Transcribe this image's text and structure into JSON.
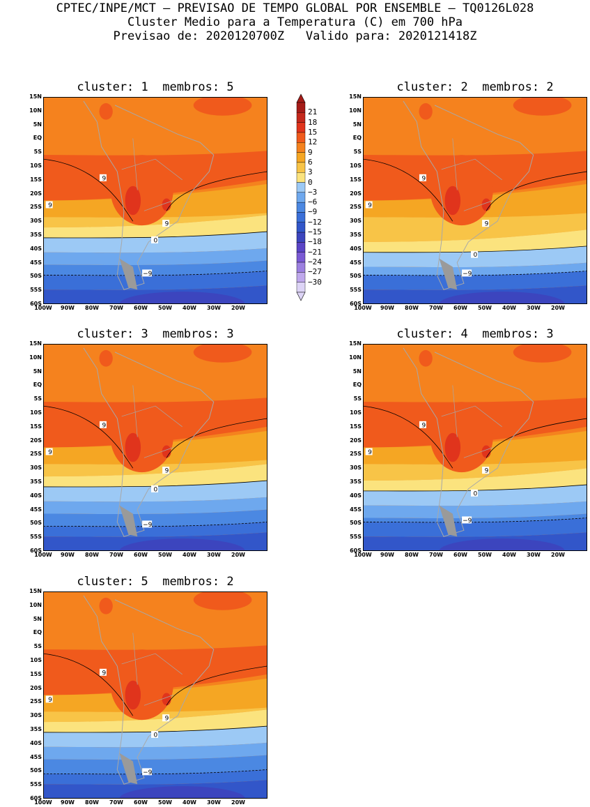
{
  "header": {
    "line1": "CPTEC/INPE/MCT – PREVISAO DE TEMPO GLOBAL POR ENSEMBLE – TQ0126L028",
    "line2": "Cluster Medio para a Temperatura (C) em 700 hPa",
    "line3": "Previsao de: 2020120700Z   Valido para: 2020121418Z"
  },
  "panels": [
    {
      "title": "cluster: 1  membros: 5"
    },
    {
      "title": "cluster: 2  membros: 2"
    },
    {
      "title": "cluster: 3  membros: 3"
    },
    {
      "title": "cluster: 4  membros: 3"
    },
    {
      "title": "cluster: 5  membros: 2"
    }
  ],
  "lat_labels": [
    "15N",
    "10N",
    "5N",
    "EQ",
    "5S",
    "10S",
    "15S",
    "20S",
    "25S",
    "30S",
    "35S",
    "40S",
    "45S",
    "50S",
    "55S",
    "60S"
  ],
  "lon_labels": [
    "100W",
    "90W",
    "80W",
    "70W",
    "60W",
    "50W",
    "40W",
    "30W",
    "20W"
  ],
  "contour_labels": {
    "warm": "9",
    "zero": "0",
    "cold": "−9"
  },
  "colorbar": {
    "labels": [
      "21",
      "18",
      "15",
      "12",
      "9",
      "6",
      "3",
      "0",
      "−3",
      "−6",
      "−9",
      "−12",
      "−15",
      "−18",
      "−21",
      "−24",
      "−27",
      "−30"
    ],
    "colors": [
      "#a51c18",
      "#c4281c",
      "#e0341c",
      "#f05a1c",
      "#f5821e",
      "#f5a623",
      "#f8c447",
      "#fbe37e",
      "#9cc9f5",
      "#6ea8ee",
      "#4b88e2",
      "#3a6fd8",
      "#3256c9",
      "#3c45be",
      "#5a44c6",
      "#7a5ad4",
      "#9c80e0",
      "#bfa8ec",
      "#ddd4f6"
    ]
  },
  "colors": {
    "land_border": "#a8a8a8",
    "frame": "#000000"
  }
}
